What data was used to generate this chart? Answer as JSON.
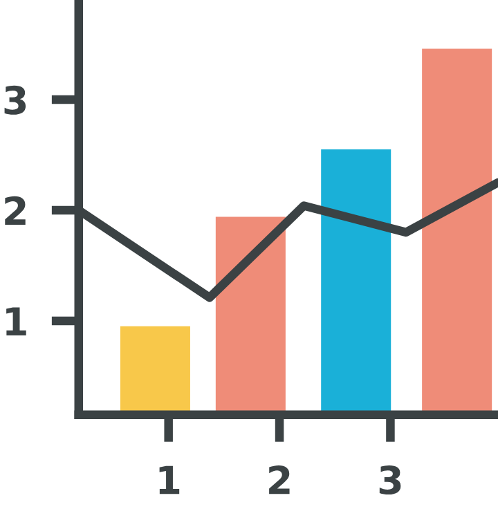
{
  "chart_data": {
    "type": "bar",
    "xlim": [
      0.19,
      3.97
    ],
    "ylim": [
      0.15,
      3.9
    ],
    "xticks": [
      1,
      2,
      3
    ],
    "yticks": [
      1,
      2,
      3
    ],
    "grid": false,
    "legend": false,
    "series": [
      {
        "x": [
          0.88,
          1.74,
          2.69,
          3.6
        ],
        "values": [
          0.95,
          1.94,
          2.55,
          3.46
        ],
        "colors": [
          "#f8c84a",
          "#ef8c78",
          "#1ab0d8",
          "#ef8c78"
        ]
      },
      {
        "type": "line",
        "color": "#3b4244",
        "x": [
          0.19,
          1.37,
          2.22,
          3.14,
          3.97
        ],
        "values": [
          2.0,
          1.21,
          2.04,
          1.8,
          2.25
        ],
        "marker": "none",
        "line_style": "solid"
      }
    ]
  }
}
